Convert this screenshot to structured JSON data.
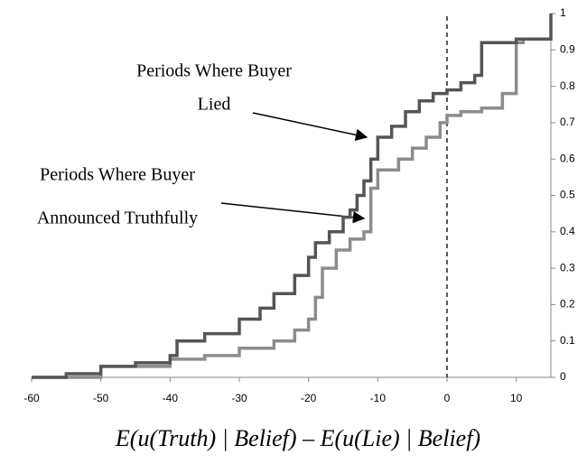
{
  "chart_data": {
    "type": "line",
    "step": true,
    "xlim": [
      -60,
      15
    ],
    "ylim": [
      0,
      1
    ],
    "xticks": [
      -60,
      -50,
      -40,
      -30,
      -20,
      -10,
      0,
      10
    ],
    "yticks": [
      0,
      0.1,
      0.2,
      0.3,
      0.4,
      0.5,
      0.6,
      0.7,
      0.8,
      0.9,
      1
    ],
    "x_label": "E(u(Truth) | Belief) – E(u(Lie) | Belief)",
    "reference_line_x": 0,
    "annotations": [
      {
        "lines": [
          "Periods Where Buyer",
          "Lied"
        ]
      },
      {
        "lines": [
          "Periods Where Buyer",
          "Announced Truthfully"
        ]
      }
    ],
    "series": [
      {
        "color": "#555555",
        "x": [
          -60,
          -55,
          -50,
          -45,
          -40,
          -39,
          -35,
          -30,
          -27,
          -25,
          -22,
          -20,
          -19,
          -17,
          -15,
          -14,
          -13,
          -12,
          -11,
          -10,
          -8,
          -6,
          -4,
          -2,
          0,
          2,
          4,
          5,
          10,
          15,
          15
        ],
        "values": [
          0,
          0.01,
          0.03,
          0.04,
          0.06,
          0.1,
          0.12,
          0.16,
          0.19,
          0.23,
          0.28,
          0.33,
          0.37,
          0.4,
          0.44,
          0.46,
          0.5,
          0.54,
          0.6,
          0.66,
          0.69,
          0.73,
          0.76,
          0.78,
          0.79,
          0.81,
          0.83,
          0.92,
          0.93,
          0.93,
          1
        ]
      },
      {
        "color": "#8c8c8c",
        "x": [
          -60,
          -50,
          -40,
          -35,
          -30,
          -25,
          -22,
          -20,
          -19,
          -18,
          -16,
          -14,
          -12,
          -11,
          -10,
          -7,
          -5,
          -3,
          -1,
          0,
          2,
          5,
          8,
          10,
          11,
          15
        ],
        "values": [
          0,
          0.03,
          0.05,
          0.06,
          0.08,
          0.1,
          0.13,
          0.16,
          0.22,
          0.3,
          0.35,
          0.38,
          0.4,
          0.52,
          0.57,
          0.6,
          0.63,
          0.66,
          0.7,
          0.72,
          0.73,
          0.74,
          0.78,
          0.92,
          0.93,
          0.93
        ]
      }
    ]
  }
}
